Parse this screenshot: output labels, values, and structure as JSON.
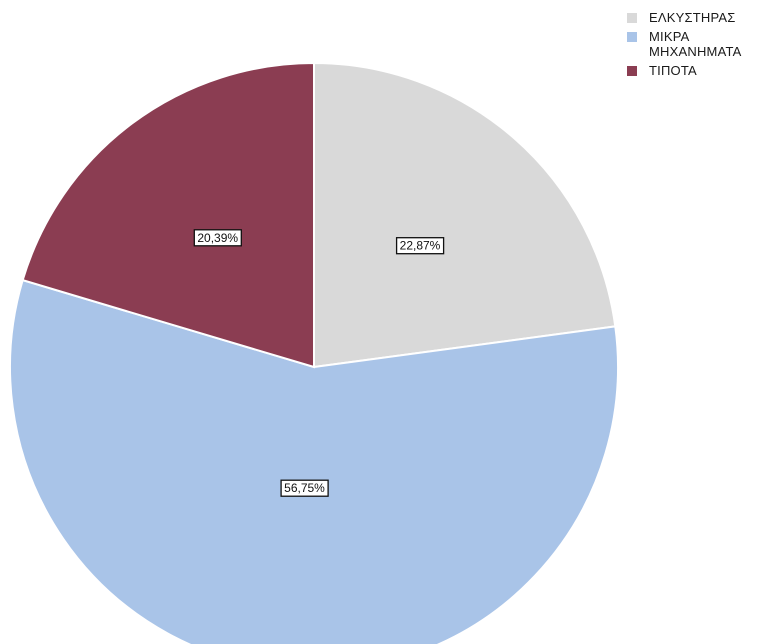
{
  "chart_data": {
    "type": "pie",
    "categories": [
      "ΕΛΚΥΣΤΗΡΑΣ",
      "ΜΙΚΡΑ\nΜΗΧΑΝΗΜΑΤΑ",
      "ΤΙΠΟΤΑ"
    ],
    "values": [
      22.87,
      56.75,
      20.39
    ],
    "data_labels": [
      "22,87%",
      "56,75%",
      "20,39%"
    ],
    "colors": [
      "#d9d9d9",
      "#a9c4e8",
      "#8b3d52"
    ],
    "legend_position": "top-right",
    "start_angle": "12 o'clock",
    "direction": "clockwise",
    "title": ""
  }
}
